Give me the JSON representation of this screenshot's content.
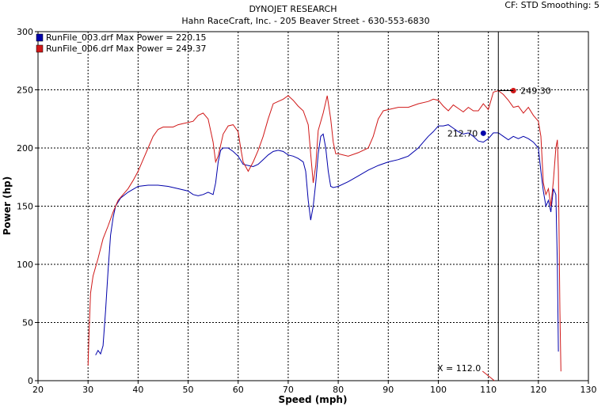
{
  "header": {
    "title": "DYNOJET RESEARCH",
    "subtitle": "Hahn RaceCraft, Inc. - 205 Beaver Street - 630-553-6830",
    "settings": "CF: STD  Smoothing: 5"
  },
  "chart_data": {
    "type": "line",
    "xlabel": "Speed (mph)",
    "ylabel": "Power (hp)",
    "xlim": [
      20,
      130
    ],
    "ylim": [
      0,
      300
    ],
    "x_ticks": [
      20,
      30,
      40,
      50,
      60,
      70,
      80,
      90,
      100,
      110,
      120,
      130
    ],
    "y_ticks": [
      0,
      50,
      100,
      150,
      200,
      250,
      300
    ],
    "grid": true,
    "legend_placement": "top-left",
    "series": [
      {
        "name": "RunFile_003.drf Max Power = 220.15",
        "color": "#0000aa",
        "points": [
          [
            31.5,
            22
          ],
          [
            32,
            26
          ],
          [
            32.5,
            23
          ],
          [
            33,
            30
          ],
          [
            33.5,
            60
          ],
          [
            34,
            95
          ],
          [
            34.5,
            125
          ],
          [
            35,
            140
          ],
          [
            35.5,
            150
          ],
          [
            36.5,
            157
          ],
          [
            38,
            162
          ],
          [
            40,
            167
          ],
          [
            42,
            168
          ],
          [
            44,
            168
          ],
          [
            46,
            167
          ],
          [
            48,
            165
          ],
          [
            50,
            163
          ],
          [
            51,
            160
          ],
          [
            52,
            159
          ],
          [
            53,
            160
          ],
          [
            54,
            162
          ],
          [
            55,
            160
          ],
          [
            55.5,
            170
          ],
          [
            56,
            188
          ],
          [
            56.5,
            198
          ],
          [
            57,
            200
          ],
          [
            58,
            200
          ],
          [
            59,
            197
          ],
          [
            60,
            193
          ],
          [
            61,
            186
          ],
          [
            62,
            185
          ],
          [
            63,
            184
          ],
          [
            64,
            186
          ],
          [
            65,
            190
          ],
          [
            66,
            194
          ],
          [
            67,
            197
          ],
          [
            68,
            198
          ],
          [
            69,
            197
          ],
          [
            70,
            194
          ],
          [
            71,
            193
          ],
          [
            72,
            191
          ],
          [
            73,
            188
          ],
          [
            73.5,
            180
          ],
          [
            74,
            155
          ],
          [
            74.5,
            138
          ],
          [
            75,
            150
          ],
          [
            75.5,
            170
          ],
          [
            76,
            195
          ],
          [
            76.5,
            210
          ],
          [
            77,
            212
          ],
          [
            77.5,
            200
          ],
          [
            78,
            180
          ],
          [
            78.5,
            167
          ],
          [
            79,
            166
          ],
          [
            80,
            167
          ],
          [
            82,
            171
          ],
          [
            84,
            176
          ],
          [
            86,
            181
          ],
          [
            88,
            185
          ],
          [
            90,
            188
          ],
          [
            92,
            190
          ],
          [
            94,
            193
          ],
          [
            96,
            200
          ],
          [
            97,
            205
          ],
          [
            98,
            210
          ],
          [
            99,
            214
          ],
          [
            100,
            219
          ],
          [
            101,
            219
          ],
          [
            102,
            220
          ],
          [
            103,
            217
          ],
          [
            104,
            214
          ],
          [
            105,
            212
          ],
          [
            106,
            213
          ],
          [
            107,
            210
          ],
          [
            108,
            206
          ],
          [
            109,
            205
          ],
          [
            110,
            208
          ],
          [
            111,
            213
          ],
          [
            112,
            213
          ],
          [
            113,
            210
          ],
          [
            114,
            207
          ],
          [
            115,
            210
          ],
          [
            116,
            208
          ],
          [
            117,
            210
          ],
          [
            118,
            208
          ],
          [
            119,
            205
          ],
          [
            120,
            200
          ],
          [
            120.5,
            180
          ],
          [
            121,
            163
          ],
          [
            121.5,
            150
          ],
          [
            122,
            155
          ],
          [
            122.5,
            145
          ],
          [
            123,
            165
          ],
          [
            123.5,
            160
          ],
          [
            123.8,
            100
          ],
          [
            124,
            25
          ]
        ]
      },
      {
        "name": "RunFile_006.drf Max Power = 249.37",
        "color": "#d01818",
        "points": [
          [
            30,
            13
          ],
          [
            30.2,
            40
          ],
          [
            30.5,
            75
          ],
          [
            31,
            90
          ],
          [
            32,
            105
          ],
          [
            33,
            122
          ],
          [
            34,
            133
          ],
          [
            35,
            145
          ],
          [
            36,
            155
          ],
          [
            37,
            160
          ],
          [
            38,
            165
          ],
          [
            39,
            172
          ],
          [
            40,
            180
          ],
          [
            41,
            190
          ],
          [
            42,
            200
          ],
          [
            43,
            210
          ],
          [
            44,
            216
          ],
          [
            45,
            218
          ],
          [
            46,
            218
          ],
          [
            47,
            218
          ],
          [
            48,
            220
          ],
          [
            49,
            221
          ],
          [
            50,
            222
          ],
          [
            51,
            223
          ],
          [
            52,
            228
          ],
          [
            53,
            230
          ],
          [
            54,
            225
          ],
          [
            55,
            205
          ],
          [
            55.5,
            188
          ],
          [
            56,
            193
          ],
          [
            57,
            212
          ],
          [
            58,
            219
          ],
          [
            59,
            220
          ],
          [
            60,
            214
          ],
          [
            60.5,
            200
          ],
          [
            61,
            188
          ],
          [
            62,
            180
          ],
          [
            63,
            188
          ],
          [
            64,
            198
          ],
          [
            65,
            210
          ],
          [
            66,
            225
          ],
          [
            67,
            238
          ],
          [
            68,
            240
          ],
          [
            69,
            242
          ],
          [
            70,
            245
          ],
          [
            71,
            241
          ],
          [
            72,
            236
          ],
          [
            73,
            232
          ],
          [
            74,
            220
          ],
          [
            74.5,
            195
          ],
          [
            75,
            170
          ],
          [
            75.5,
            185
          ],
          [
            76,
            215
          ],
          [
            77,
            230
          ],
          [
            77.8,
            245
          ],
          [
            78.5,
            225
          ],
          [
            79,
            205
          ],
          [
            79.5,
            195
          ],
          [
            80,
            195
          ],
          [
            82,
            193
          ],
          [
            84,
            196
          ],
          [
            86,
            200
          ],
          [
            87,
            210
          ],
          [
            88,
            225
          ],
          [
            89,
            232
          ],
          [
            90,
            233
          ],
          [
            92,
            235
          ],
          [
            94,
            235
          ],
          [
            96,
            238
          ],
          [
            98,
            240
          ],
          [
            99,
            242
          ],
          [
            100,
            241
          ],
          [
            101,
            236
          ],
          [
            102,
            232
          ],
          [
            103,
            237
          ],
          [
            104,
            234
          ],
          [
            105,
            231
          ],
          [
            106,
            235
          ],
          [
            107,
            232
          ],
          [
            108,
            232
          ],
          [
            109,
            238
          ],
          [
            110,
            233
          ],
          [
            111,
            248
          ],
          [
            112,
            249.3
          ],
          [
            113,
            246
          ],
          [
            114,
            241
          ],
          [
            115,
            235
          ],
          [
            116,
            236
          ],
          [
            117,
            230
          ],
          [
            118,
            235
          ],
          [
            119,
            228
          ],
          [
            120,
            223
          ],
          [
            120.5,
            210
          ],
          [
            121,
            170
          ],
          [
            121.5,
            160
          ],
          [
            122,
            165
          ],
          [
            122.5,
            150
          ],
          [
            123,
            172
          ],
          [
            123.5,
            200
          ],
          [
            123.8,
            207
          ],
          [
            124,
            180
          ],
          [
            124.3,
            60
          ],
          [
            124.5,
            8
          ]
        ]
      }
    ],
    "annotations": [
      {
        "label": "212.70",
        "x": 109,
        "y": 212.7,
        "marker_color": "#0000aa"
      },
      {
        "label": "249.30",
        "x": 115,
        "y": 249.3,
        "marker_color": "#d01818"
      }
    ],
    "cursor": {
      "x": 112,
      "label": "X = 112.0"
    }
  }
}
